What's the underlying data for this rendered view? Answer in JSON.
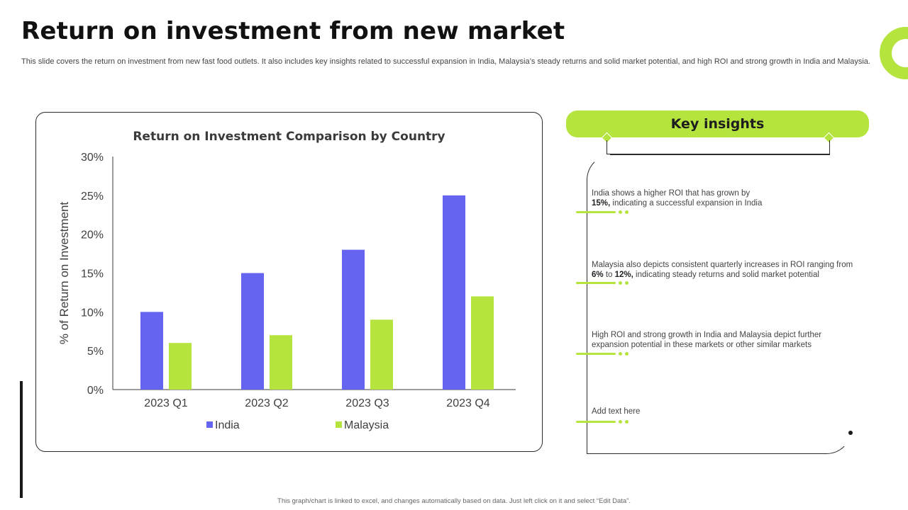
{
  "page": {
    "title": "Return on investment from new market",
    "subtitle": "This slide covers the return on investment from new fast food outlets. It also includes key insights related to successful expansion in India, Malaysia’s steady returns and solid market potential, and high ROI and strong growth in India and Malaysia.",
    "footer": "This graph/chart is linked to excel, and changes automatically based on data. Just left click on it and select “Edit Data”."
  },
  "colors": {
    "accent": "#b5e43f",
    "india": "#6464f0",
    "malaysia": "#b5e43f",
    "dark": "#2a2a2a"
  },
  "chart_data": {
    "type": "bar",
    "title": "Return on Investment Comparison by Country",
    "xlabel": "",
    "ylabel": "% of Return on Investment",
    "categories": [
      "2023 Q1",
      "2023 Q2",
      "2023 Q3",
      "2023 Q4"
    ],
    "series": [
      {
        "name": "India",
        "values": [
          10,
          15,
          18,
          25
        ]
      },
      {
        "name": "Malaysia",
        "values": [
          6,
          7,
          9,
          12
        ]
      }
    ],
    "ylim": [
      0,
      30
    ],
    "yticks": [
      0,
      5,
      10,
      15,
      20,
      25,
      30
    ],
    "ytick_labels": [
      "0%",
      "5%",
      "10%",
      "15%",
      "20%",
      "25%",
      "30%"
    ],
    "grid": false,
    "legend": "bottom"
  },
  "insights": {
    "header": "Key insights",
    "items": [
      {
        "pre": "India shows a higher ROI that has grown by",
        "b1": "15%,",
        "post": "indicating a successful expansion in India"
      },
      {
        "pre": "Malaysia also depicts consistent quarterly increases in ROI ranging from",
        "b1": "6%",
        "mid": "to",
        "b2": "12%,",
        "post": "indicating steady returns and solid market potential"
      },
      {
        "pre": "High ROI and strong growth in India and Malaysia depict further expansion potential in these markets or other similar markets"
      },
      {
        "pre": "Add text here"
      }
    ]
  }
}
